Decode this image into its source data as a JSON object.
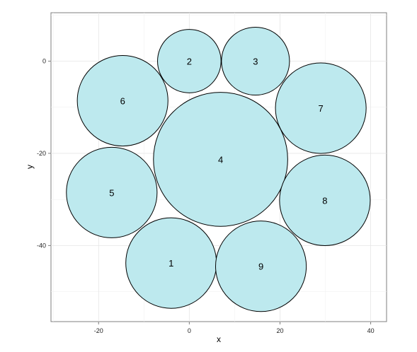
{
  "chart_data": {
    "type": "scatter",
    "title": "",
    "xlabel": "x",
    "ylabel": "y",
    "xlim": [
      -30.5,
      43.5
    ],
    "ylim": [
      -56.5,
      10.5
    ],
    "x_ticks": [
      -20,
      0,
      20,
      40
    ],
    "y_ticks": [
      0,
      -20,
      -40
    ],
    "x_tick_labels": [
      "-20",
      "0",
      "20",
      "40"
    ],
    "y_tick_labels": [
      "0",
      "-20",
      "-40"
    ],
    "grid": true,
    "legend": "none",
    "fill_color": "#bde9ee",
    "stroke_color": "#000000",
    "circles": [
      {
        "label": "1",
        "x": -4,
        "y": -43.8,
        "r": 10
      },
      {
        "label": "2",
        "x": 0,
        "y": 0,
        "r": 7
      },
      {
        "label": "3",
        "x": 14.6,
        "y": 0,
        "r": 7.5
      },
      {
        "label": "4",
        "x": 6.9,
        "y": -21.3,
        "r": 14.8
      },
      {
        "label": "5",
        "x": -17.1,
        "y": -28.5,
        "r": 10
      },
      {
        "label": "6",
        "x": -14.7,
        "y": -8.6,
        "r": 10
      },
      {
        "label": "7",
        "x": 29,
        "y": -10.2,
        "r": 10
      },
      {
        "label": "8",
        "x": 29.9,
        "y": -30.2,
        "r": 10
      },
      {
        "label": "9",
        "x": 15.8,
        "y": -44.5,
        "r": 10
      }
    ]
  }
}
